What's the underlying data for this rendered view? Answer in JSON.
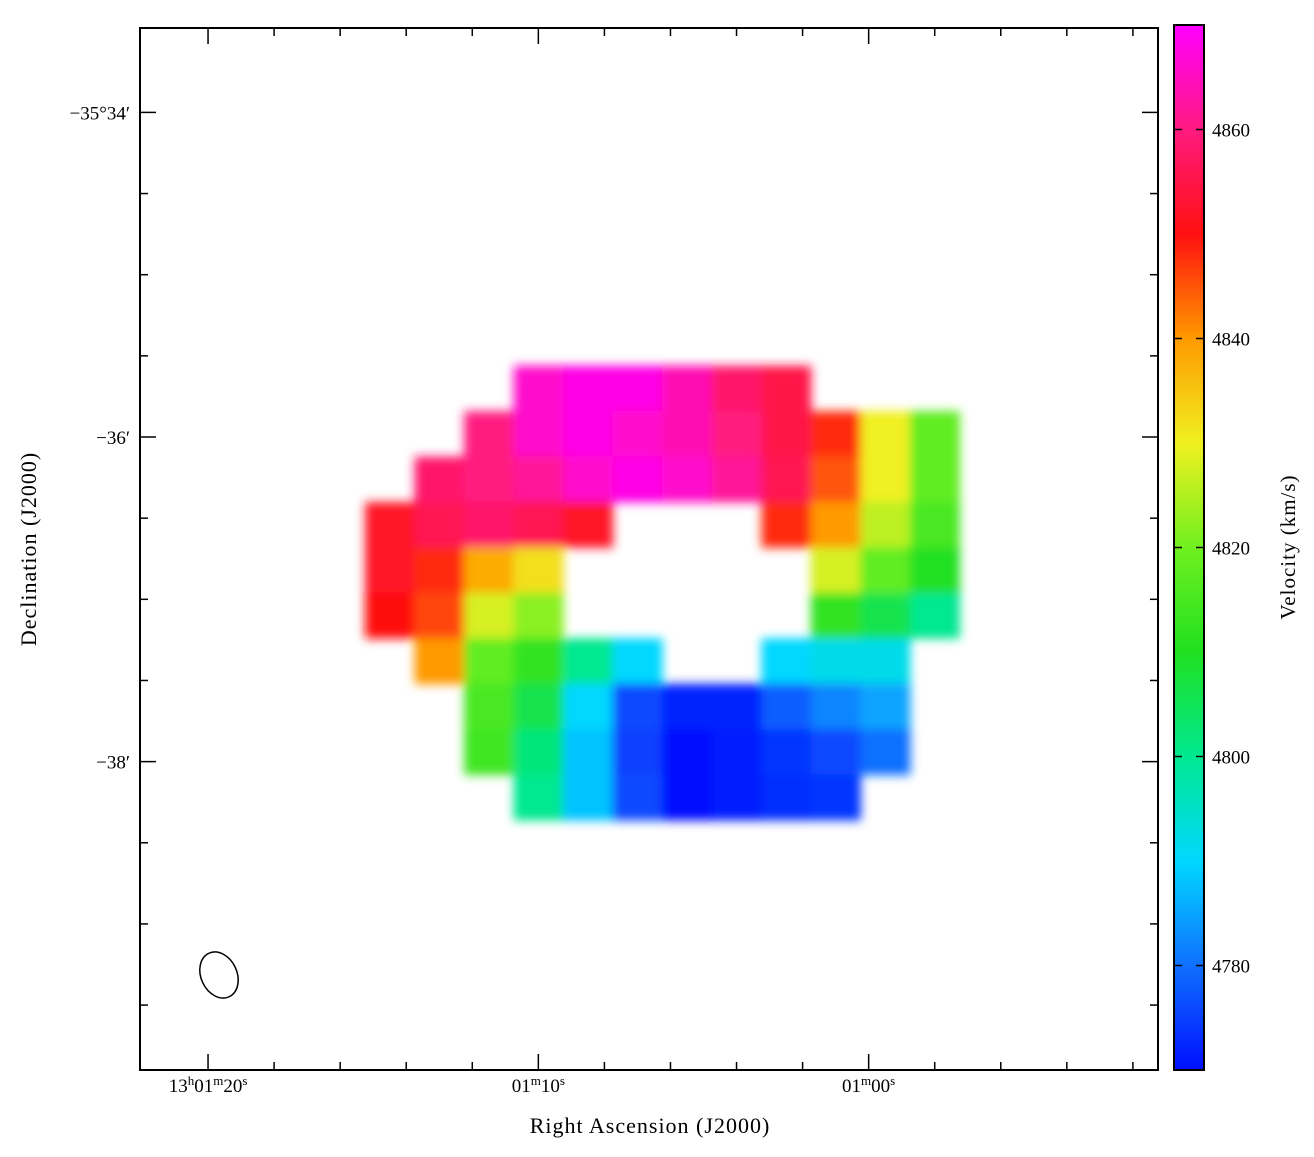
{
  "chart_data": {
    "type": "heatmap",
    "xlabel": "Right Ascension (J2000)",
    "ylabel": "Declination (J2000)",
    "colorbar_label": "Velocity (km/s)",
    "xlim": [
      22.06,
      -8.76
    ],
    "ylim": [
      -39.9,
      -33.48
    ],
    "xticks": [
      {
        "value": 20,
        "label": "13h01m20s"
      },
      {
        "value": 10,
        "label": "01m10s"
      },
      {
        "value": 0,
        "label": "01m00s"
      }
    ],
    "xminorticks": [
      18,
      16,
      14,
      12,
      8,
      6,
      4,
      2,
      -2,
      -4,
      -6,
      -8
    ],
    "yticks": [
      {
        "value": -34,
        "label": "−35°34′"
      },
      {
        "value": -36,
        "label": "−36′"
      },
      {
        "value": -38,
        "label": "−38′"
      }
    ],
    "yminorticks": [
      -34.5,
      -35,
      -35.5,
      -36.5,
      -37,
      -37.5,
      -38.5,
      -39,
      -39.5
    ],
    "zlim": [
      4770,
      4870
    ],
    "zticks": [
      4780,
      4800,
      4820,
      4840,
      4860
    ],
    "colormap": [
      "#0010ff",
      "#1070ff",
      "#00d8ff",
      "#00e890",
      "#20e020",
      "#70f020",
      "#f0f020",
      "#ff9a00",
      "#ff1010",
      "#ff1a80",
      "#ff00ff"
    ],
    "x": [
      14.5,
      13,
      11.5,
      10,
      8.5,
      7,
      5.5,
      4,
      2.5,
      1,
      -0.5,
      -2
    ],
    "y": [
      -35.7,
      -35.98,
      -36.26,
      -36.54,
      -36.82,
      -37.1,
      -37.38,
      -37.66,
      -37.94,
      -38.22
    ],
    "values": [
      [
        null,
        null,
        null,
        4866,
        4868,
        4868,
        4864,
        4858,
        4855,
        null,
        null,
        null
      ],
      [
        null,
        null,
        4860,
        4866,
        4868,
        4866,
        4864,
        4860,
        4855,
        4848,
        4830,
        4818
      ],
      [
        null,
        4858,
        4860,
        4862,
        4866,
        4868,
        4866,
        4862,
        4856,
        4845,
        4830,
        4818
      ],
      [
        4852,
        4856,
        4858,
        4856,
        4852,
        null,
        null,
        null,
        4848,
        4840,
        4826,
        4815
      ],
      [
        4852,
        4848,
        4838,
        4832,
        null,
        null,
        null,
        null,
        null,
        4828,
        4818,
        4810
      ],
      [
        4850,
        4846,
        4828,
        4822,
        null,
        null,
        null,
        null,
        null,
        4812,
        4806,
        4800
      ],
      [
        null,
        4840,
        4818,
        4812,
        4800,
        4790,
        null,
        null,
        4790,
        4792,
        4792,
        null
      ],
      [
        null,
        null,
        4815,
        4806,
        4790,
        4776,
        4772,
        4772,
        4778,
        4782,
        4785,
        null
      ],
      [
        null,
        null,
        4814,
        4802,
        4788,
        4775,
        4770,
        4771,
        4774,
        4776,
        4780,
        null
      ],
      [
        null,
        null,
        null,
        4800,
        4788,
        4776,
        4770,
        4771,
        4773,
        4774,
        null,
        null
      ]
    ]
  }
}
